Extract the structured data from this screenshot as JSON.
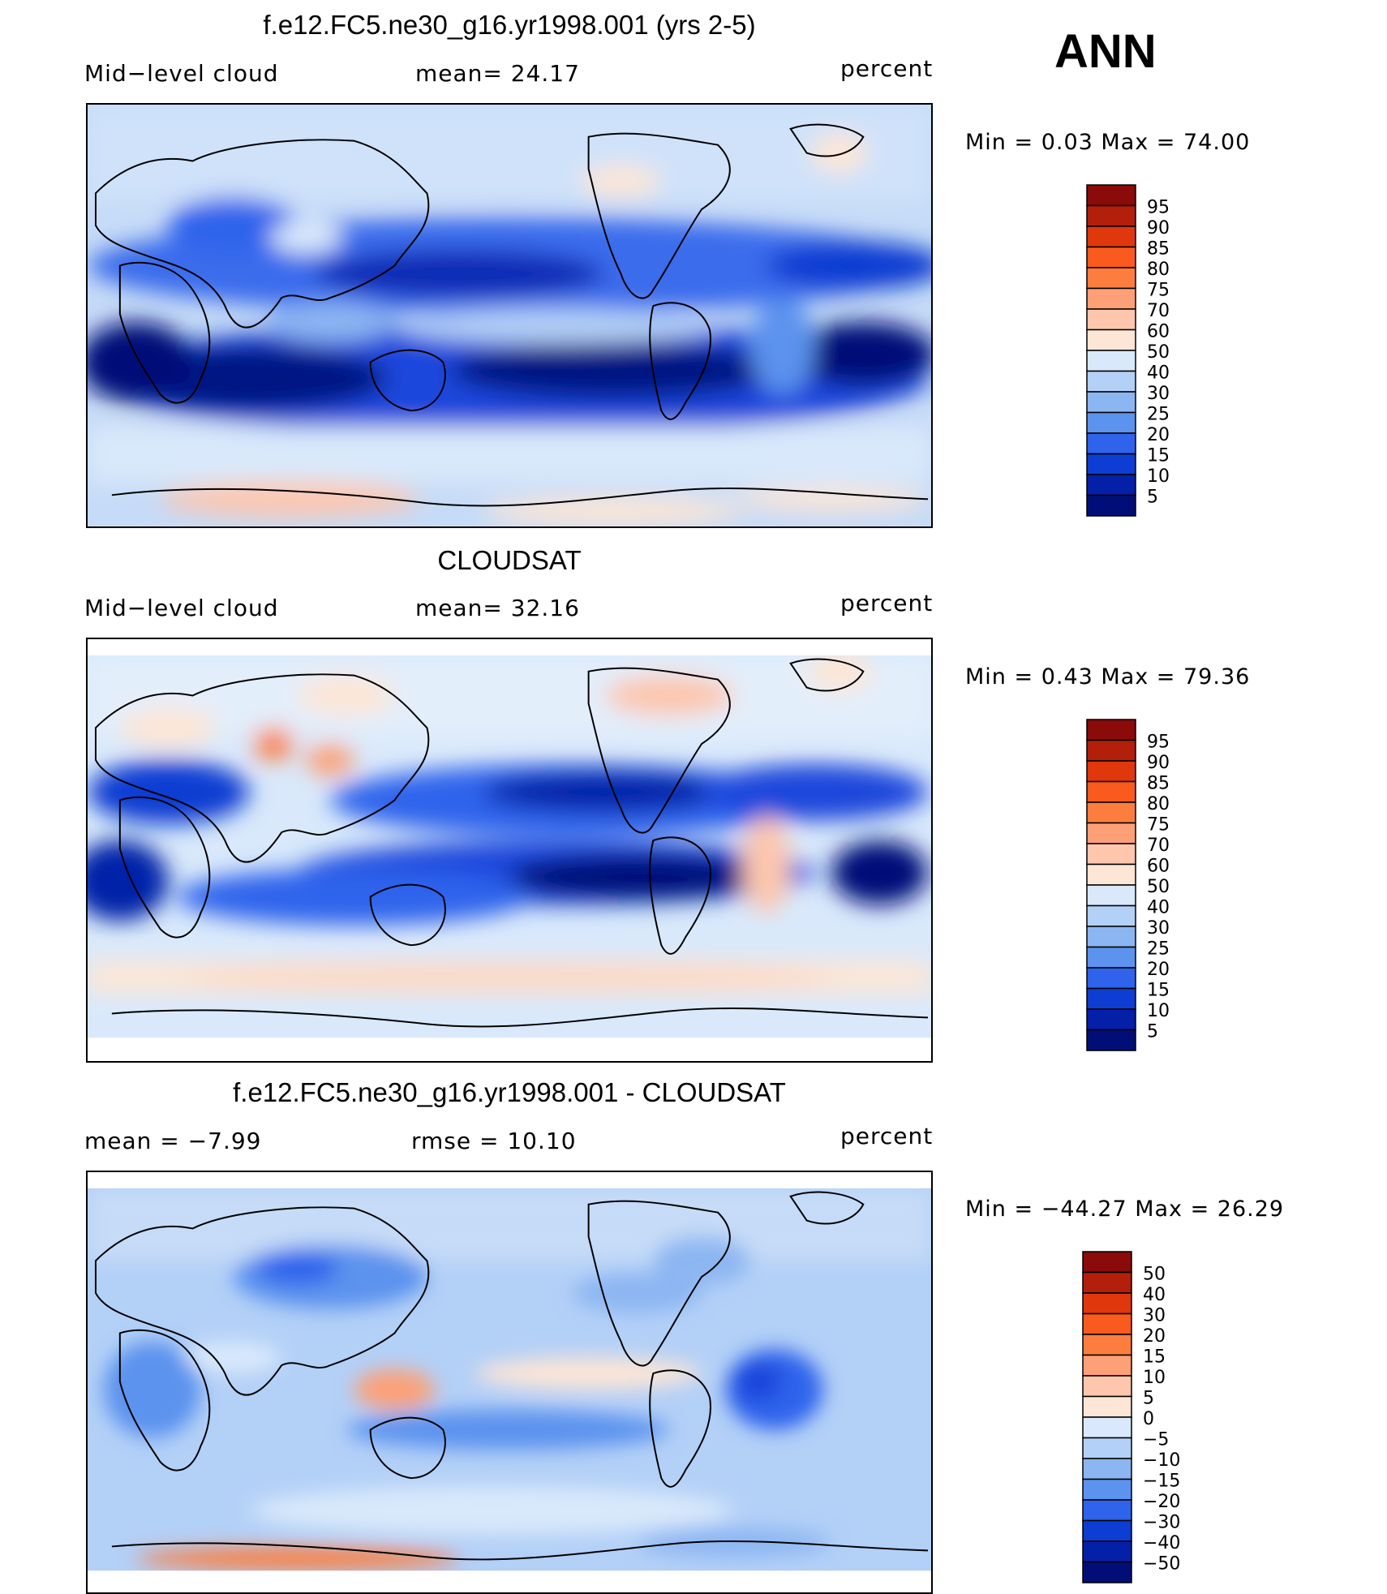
{
  "season": "ANN",
  "chart_data": [
    {
      "type": "heatmap",
      "title": "f.e12.FC5.ne30_g16.yr1998.001 (yrs 2-5)",
      "left_label": "Mid−level cloud",
      "center_label": "mean=   24.17",
      "units": "percent",
      "minmax": "Min  =     0.03  Max  =    74.00",
      "colorbar": {
        "levels": [
          "95",
          "90",
          "85",
          "80",
          "75",
          "70",
          "60",
          "50",
          "40",
          "30",
          "25",
          "20",
          "15",
          "10",
          "5"
        ],
        "colors": [
          "#8b0a0a",
          "#b31f0a",
          "#e0380c",
          "#fa5a1e",
          "#fc7d3e",
          "#fda077",
          "#fdc6ad",
          "#fde6d6",
          "#d9e9fb",
          "#b3d0f7",
          "#8cb6f2",
          "#5c93ee",
          "#2f63ec",
          "#0d3dd2",
          "#0420a8",
          "#020e78"
        ]
      }
    },
    {
      "type": "heatmap",
      "title": "CLOUDSAT",
      "left_label": "Mid−level cloud",
      "center_label": "mean=   32.16",
      "units": "percent",
      "minmax": "Min  =     0.43  Max  =    79.36",
      "colorbar": {
        "levels": [
          "95",
          "90",
          "85",
          "80",
          "75",
          "70",
          "60",
          "50",
          "40",
          "30",
          "25",
          "20",
          "15",
          "10",
          "5"
        ],
        "colors": [
          "#8b0a0a",
          "#b31f0a",
          "#e0380c",
          "#fa5a1e",
          "#fc7d3e",
          "#fda077",
          "#fdc6ad",
          "#fde6d6",
          "#d9e9fb",
          "#b3d0f7",
          "#8cb6f2",
          "#5c93ee",
          "#2f63ec",
          "#0d3dd2",
          "#0420a8",
          "#020e78"
        ]
      }
    },
    {
      "type": "heatmap",
      "title": "f.e12.FC5.ne30_g16.yr1998.001 - CLOUDSAT",
      "left_label": "mean  =    −7.99",
      "center_label": "rmse  =    10.10",
      "units": "percent",
      "minmax": "Min  =  −44.27  Max  =    26.29",
      "colorbar": {
        "levels": [
          "50",
          "40",
          "30",
          "20",
          "15",
          "10",
          "5",
          "0",
          "−5",
          "−10",
          "−15",
          "−20",
          "−30",
          "−40",
          "−50"
        ],
        "colors": [
          "#8b0a0a",
          "#b31f0a",
          "#e0380c",
          "#fa5a1e",
          "#fc7d3e",
          "#fda077",
          "#fdc6ad",
          "#fde6d6",
          "#d9e9fb",
          "#b3d0f7",
          "#8cb6f2",
          "#5c93ee",
          "#2f63ec",
          "#0d3dd2",
          "#0420a8",
          "#020e78"
        ]
      }
    }
  ]
}
